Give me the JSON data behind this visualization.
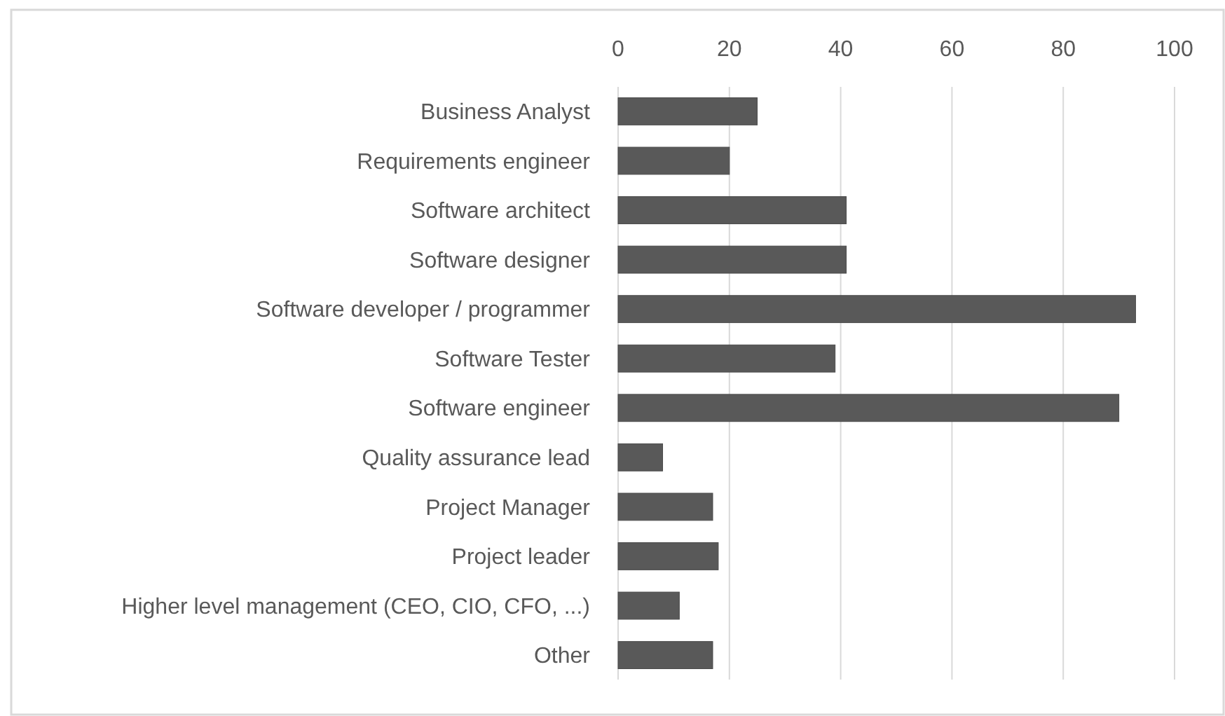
{
  "chart_data": {
    "type": "bar",
    "orientation": "horizontal",
    "categories": [
      "Business Analyst",
      "Requirements engineer",
      "Software architect",
      "Software designer",
      "Software developer / programmer",
      "Software Tester",
      "Software engineer",
      "Quality assurance lead",
      "Project Manager",
      "Project leader",
      "Higher level management (CEO, CIO, CFO, ...)",
      "Other"
    ],
    "values": [
      25,
      20,
      41,
      41,
      93,
      39,
      90,
      8,
      17,
      18,
      11,
      17
    ],
    "color": "#595959",
    "xlim": [
      0,
      100
    ],
    "xticks": [
      0,
      20,
      40,
      60,
      80,
      100
    ],
    "grid": "x"
  }
}
